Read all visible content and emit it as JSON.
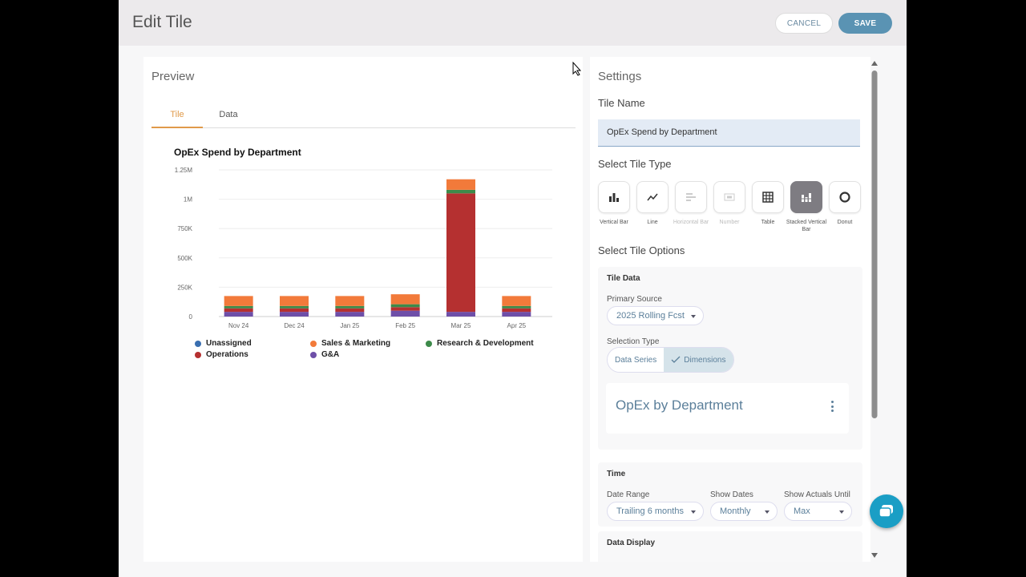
{
  "header": {
    "title": "Edit Tile",
    "cancel_label": "CANCEL",
    "save_label": "SAVE"
  },
  "preview": {
    "title": "Preview",
    "tabs": [
      {
        "label": "Tile",
        "active": true
      },
      {
        "label": "Data",
        "active": false
      }
    ]
  },
  "chart_data": {
    "type": "bar",
    "stacked": true,
    "title": "OpEx Spend by Department",
    "categories": [
      "Nov 24",
      "Dec 24",
      "Jan 25",
      "Feb 25",
      "Mar 25",
      "Apr 25"
    ],
    "yticks": [
      "0",
      "250K",
      "500K",
      "750K",
      "1M",
      "1.25M"
    ],
    "ylim": [
      0,
      1250000
    ],
    "grid": true,
    "series": [
      {
        "name": "Unassigned",
        "color": "#3a6fb0",
        "values": [
          0,
          0,
          0,
          0,
          0,
          0
        ]
      },
      {
        "name": "G&A",
        "color": "#6e4fa8",
        "values": [
          40000,
          40000,
          40000,
          50000,
          40000,
          40000
        ]
      },
      {
        "name": "Operations",
        "color": "#b53030",
        "values": [
          30000,
          30000,
          30000,
          30000,
          1010000,
          30000
        ]
      },
      {
        "name": "Research & Development",
        "color": "#3d8a4a",
        "values": [
          20000,
          20000,
          20000,
          25000,
          30000,
          20000
        ]
      },
      {
        "name": "Sales & Marketing",
        "color": "#f27a3a",
        "values": [
          85000,
          85000,
          85000,
          85000,
          90000,
          85000
        ]
      }
    ],
    "legend": [
      {
        "name": "Unassigned",
        "color": "#3a6fb0"
      },
      {
        "name": "Sales & Marketing",
        "color": "#f27a3a"
      },
      {
        "name": "Research & Development",
        "color": "#3d8a4a"
      },
      {
        "name": "Operations",
        "color": "#b53030"
      },
      {
        "name": "G&A",
        "color": "#6e4fa8"
      }
    ]
  },
  "settings": {
    "title": "Settings",
    "tile_name_label": "Tile Name",
    "tile_name_value": "OpEx Spend by Department",
    "tile_type_label": "Select Tile Type",
    "tile_types": [
      {
        "label": "Vertical Bar",
        "icon": "vertical-bar-icon",
        "disabled": false,
        "selected": false
      },
      {
        "label": "Line",
        "icon": "line-chart-icon",
        "disabled": false,
        "selected": false
      },
      {
        "label": "Horizontal Bar",
        "icon": "horizontal-bar-icon",
        "disabled": true,
        "selected": false
      },
      {
        "label": "Number",
        "icon": "number-icon",
        "disabled": true,
        "selected": false
      },
      {
        "label": "Table",
        "icon": "table-icon",
        "disabled": false,
        "selected": false
      },
      {
        "label": "Stacked Vertical Bar",
        "icon": "stacked-bar-icon",
        "disabled": false,
        "selected": true
      },
      {
        "label": "Donut",
        "icon": "donut-icon",
        "disabled": false,
        "selected": false
      }
    ],
    "tile_options_label": "Select Tile Options",
    "tile_data": {
      "heading": "Tile Data",
      "primary_source_label": "Primary Source",
      "primary_source_value": "2025 Rolling Fcst",
      "selection_type_label": "Selection Type",
      "selection_options": [
        "Data Series",
        "Dimensions"
      ],
      "selected_option": "Dimensions",
      "dimension_title": "OpEx by Department"
    },
    "time": {
      "heading": "Time",
      "date_range_label": "Date Range",
      "date_range_value": "Trailing 6 months",
      "show_dates_label": "Show Dates",
      "show_dates_value": "Monthly",
      "show_actuals_label": "Show Actuals Until",
      "show_actuals_value": "Max"
    },
    "data_display": {
      "heading": "Data Display"
    }
  },
  "colors": {
    "accent": "#5a93b3",
    "tab_active": "#e09a4a",
    "chat": "#1a9ec5"
  }
}
